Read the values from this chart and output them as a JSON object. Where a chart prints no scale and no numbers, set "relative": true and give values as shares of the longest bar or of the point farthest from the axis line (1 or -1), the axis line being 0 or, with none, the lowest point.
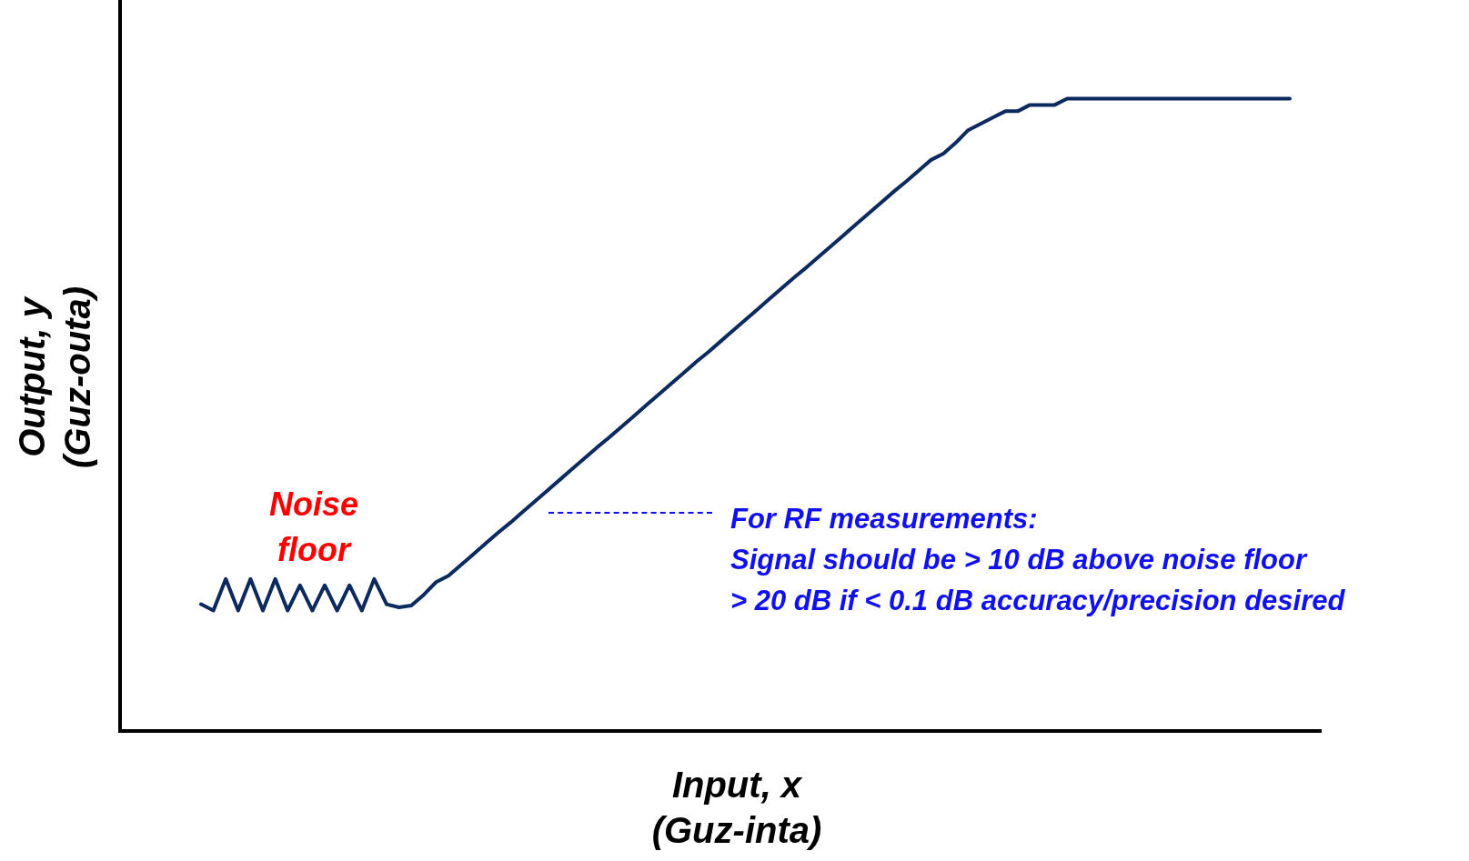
{
  "chart_data": {
    "type": "line",
    "relative": true,
    "xlabel": "Input, x\n(Guz-inta)",
    "ylabel": "Output, y\n(Guz-outa)",
    "categories": [
      null,
      null,
      null,
      null,
      null,
      null,
      null,
      null,
      null,
      null,
      null,
      null,
      null,
      null,
      null,
      null,
      null,
      null,
      null,
      null,
      null,
      null,
      null,
      null,
      null,
      null,
      null,
      null,
      null,
      null,
      null,
      null,
      null,
      null,
      null,
      null,
      null,
      null,
      null,
      null,
      null,
      null,
      null,
      null,
      null,
      null,
      null,
      null,
      null,
      null,
      null,
      null,
      null,
      null,
      null,
      null,
      null,
      null,
      null,
      null,
      null,
      null,
      null,
      null,
      null,
      null,
      null,
      null,
      null,
      null,
      null,
      null,
      null,
      null,
      null,
      null,
      null,
      null,
      null,
      null,
      null,
      null,
      null,
      null,
      null,
      null,
      null,
      null,
      null
    ],
    "series": [
      {
        "color": "#0d2a5e",
        "values": [
          0.2,
          0.19,
          0.24,
          0.19,
          0.24,
          0.19,
          0.24,
          0.19,
          0.23,
          0.19,
          0.23,
          0.19,
          0.23,
          0.19,
          0.24,
          0.2,
          0.195,
          0.198,
          0.215,
          0.235,
          0.245,
          0.262,
          0.279,
          0.296,
          0.313,
          0.329,
          0.346,
          0.363,
          0.38,
          0.397,
          0.414,
          0.431,
          0.448,
          0.464,
          0.481,
          0.498,
          0.515,
          0.532,
          0.549,
          0.566,
          0.583,
          0.599,
          0.616,
          0.633,
          0.65,
          0.667,
          0.684,
          0.701,
          0.718,
          0.734,
          0.751,
          0.768,
          0.785,
          0.802,
          0.819,
          0.836,
          0.853,
          0.869,
          0.886,
          0.903,
          0.913,
          0.93,
          0.95,
          0.96,
          0.97,
          0.98,
          0.98,
          0.99,
          0.99,
          0.99,
          1,
          1,
          1,
          1,
          1,
          1,
          1,
          1,
          1,
          1,
          1,
          1,
          1,
          1,
          1,
          1,
          1,
          1,
          1
        ]
      }
    ],
    "legend": false,
    "grid": false,
    "marker": "none",
    "line_style": "solid",
    "annotations": [
      "Noise\nfloor",
      "For RF measurements:\nSignal should be > 10 dB above noise floor\n> 20 dB if < 0.1 dB accuracy/precision desired"
    ]
  }
}
